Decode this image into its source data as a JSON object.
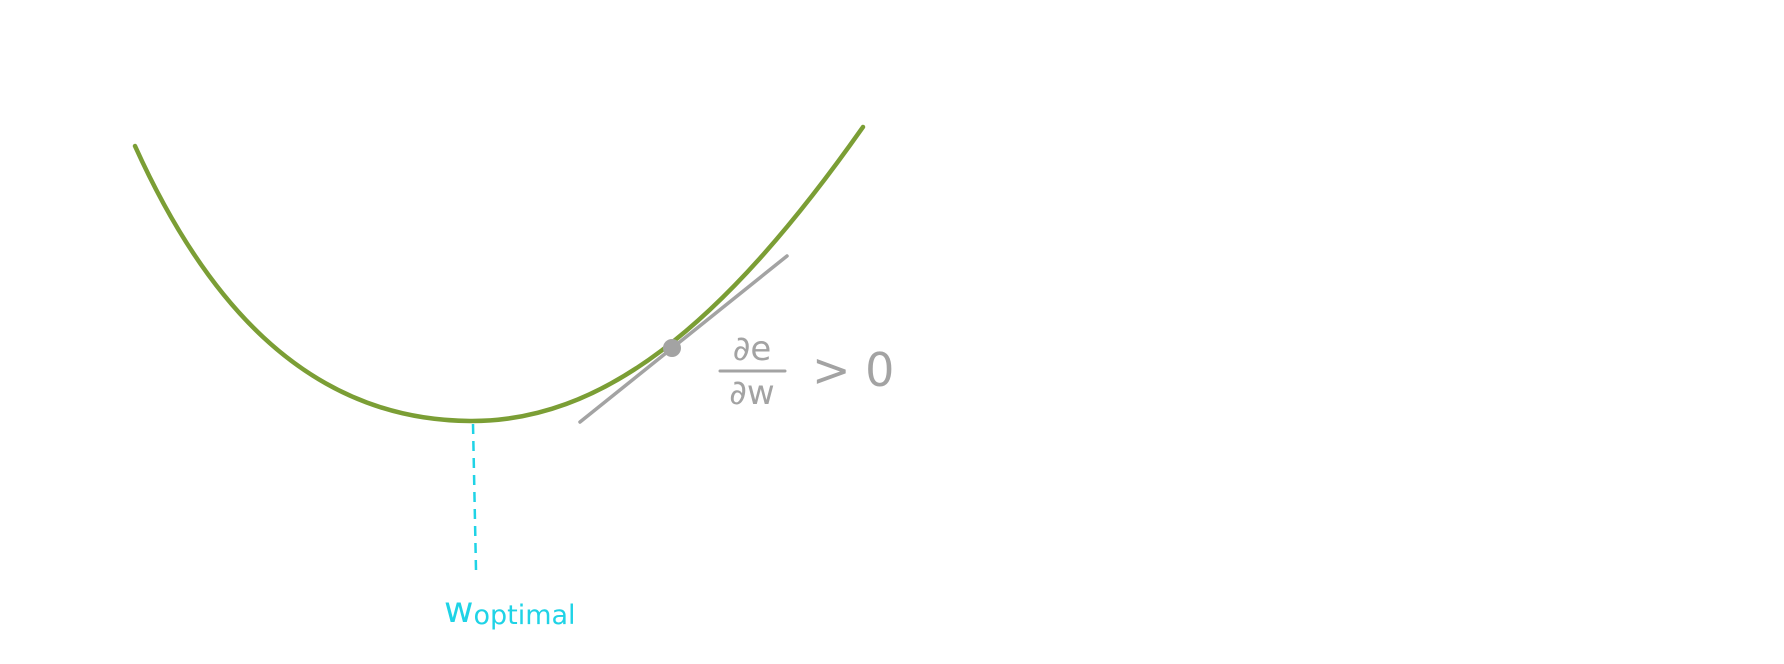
{
  "diagram": {
    "curve": {
      "name": "loss-curve",
      "color": "#7b9e35"
    },
    "tangent": {
      "name": "tangent-line",
      "color": "#a3a3a3"
    },
    "point": {
      "name": "gradient-point",
      "color": "#a3a3a3"
    },
    "optimum_marker": {
      "color": "#1fd3e6"
    },
    "labels": {
      "derivative_numerator": "∂e",
      "derivative_denominator": "∂w",
      "relation": "> 0",
      "optimal_main": "w",
      "optimal_subscript": "optimal"
    }
  }
}
